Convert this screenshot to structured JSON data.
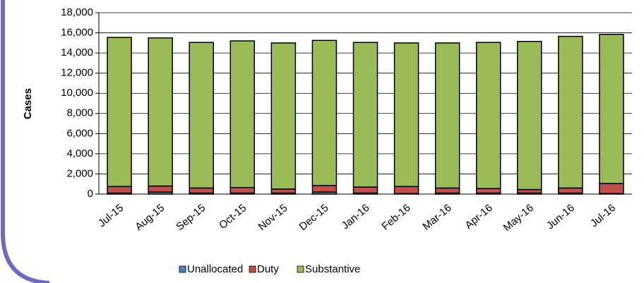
{
  "chart_data": {
    "type": "stacked_bar",
    "y_label": "Cases",
    "categories": [
      "Jul-15",
      "Aug-15",
      "Sep-15",
      "Oct-15",
      "Nov-15",
      "Dec-15",
      "Jan-16",
      "Feb-16",
      "Mar-16",
      "Apr-16",
      "May-16",
      "Jun-16",
      "Jul-16"
    ],
    "series": [
      {
        "name": "Unallocated",
        "color": "#4f81bd",
        "values": [
          100,
          200,
          100,
          100,
          100,
          200,
          100,
          50,
          100,
          100,
          100,
          100,
          50
        ]
      },
      {
        "name": "Duty",
        "color": "#c0504d",
        "values": [
          650,
          600,
          500,
          550,
          400,
          650,
          600,
          700,
          500,
          450,
          350,
          500,
          1000
        ]
      },
      {
        "name": "Substantive",
        "color": "#9bbb59",
        "values": [
          14800,
          14700,
          14450,
          14550,
          14500,
          14400,
          14350,
          14250,
          14400,
          14500,
          14700,
          15050,
          14800
        ]
      }
    ],
    "ylim": [
      0,
      18000
    ],
    "yticks": [
      0,
      {
        "value": 2000,
        "label": "2,000"
      },
      {
        "value": 4000,
        "label": "4,000"
      },
      {
        "value": 6000,
        "label": "6,000"
      },
      {
        "value": 8000,
        "label": "8,000"
      },
      {
        "value": 10000,
        "label": "10,000"
      },
      {
        "value": 12000,
        "label": "12,000"
      },
      {
        "value": 14000,
        "label": "14,000"
      },
      {
        "value": 16000,
        "label": "16,000"
      },
      {
        "value": 18000,
        "label": "18,000"
      }
    ],
    "grid": true,
    "legend": "bottom"
  }
}
